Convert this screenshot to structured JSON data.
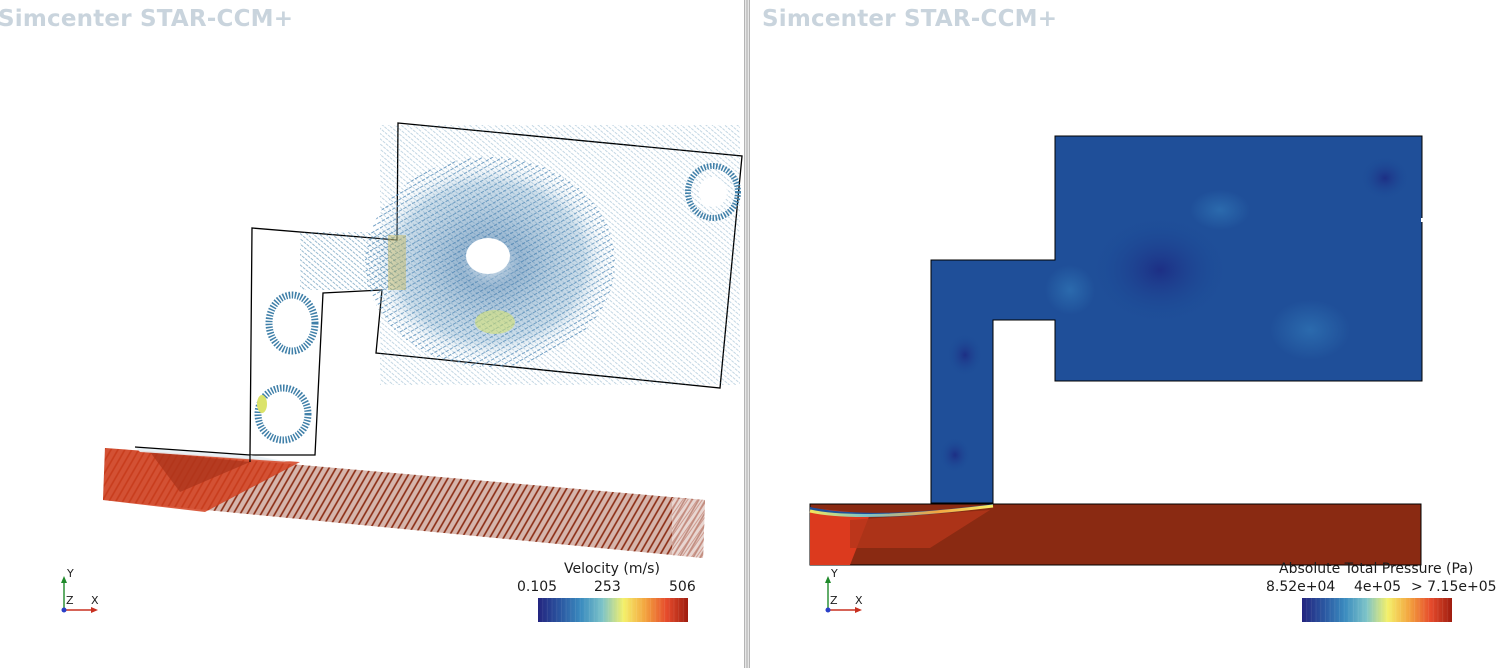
{
  "viewports": {
    "left": {
      "watermark": "Simcenter STAR-CCM+",
      "legend": {
        "title": "Velocity (m/s)",
        "min": "0.105",
        "mid": "253",
        "max": "506"
      },
      "triad": {
        "y": "Y",
        "z": "Z",
        "x": "X"
      }
    },
    "right": {
      "watermark": "Simcenter STAR-CCM+",
      "legend": {
        "title": "Absolute Total Pressure (Pa)",
        "min": "8.52e+04",
        "mid": "4e+05",
        "max": "> 7.15e+05"
      },
      "triad": {
        "y": "Y",
        "z": "Z",
        "x": "X"
      }
    }
  },
  "colors": {
    "colormap": [
      "#23247f",
      "#2a55a0",
      "#3a8bbf",
      "#7cc3c8",
      "#f4f06a",
      "#f3a43f",
      "#e64b2c",
      "#9e1d0f"
    ],
    "low_field": "#1f4f99",
    "high_field": "#8a2a12",
    "hot_field": "#dc3a1e"
  }
}
